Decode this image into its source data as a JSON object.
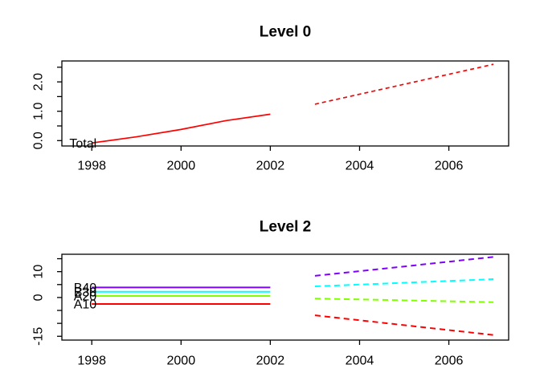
{
  "figure": {
    "background": "#ffffff",
    "axis_color": "#000000",
    "text_color": "#000000"
  },
  "chart_data": [
    {
      "type": "line",
      "title": "Level 0",
      "grid": false,
      "legend_position": "labels-at-line-start",
      "xlim": [
        1997.33,
        2007.34
      ],
      "ylim": [
        -0.183,
        2.713
      ],
      "xticks": {
        "values": [
          1998,
          2000,
          2002,
          2004,
          2006
        ],
        "labels": [
          "1998",
          "2000",
          "2002",
          "2004",
          "2006"
        ]
      },
      "yticks": {
        "values": [
          0,
          0.5,
          1,
          1.5,
          2,
          2.5
        ],
        "labels": [
          "0.0",
          "",
          "1.0",
          "",
          "2.0",
          ""
        ]
      },
      "series": [
        {
          "name": "Total",
          "label": "Total",
          "color": "#ff0000",
          "observed": {
            "x": [
              1998,
              1999,
              2000,
              2001,
              2002
            ],
            "values": [
              -0.08,
              0.13,
              0.38,
              0.68,
              0.9
            ]
          },
          "forecast": {
            "x": [
              2003,
              2004,
              2005,
              2006,
              2007
            ],
            "values": [
              1.24,
              1.58,
              1.92,
              2.26,
              2.6
            ]
          }
        }
      ]
    },
    {
      "type": "line",
      "title": "Level 2",
      "grid": false,
      "legend_position": "labels-at-line-start",
      "xlim": [
        1997.33,
        2007.34
      ],
      "ylim": [
        -16.47,
        16.72
      ],
      "xticks": {
        "values": [
          1998,
          2000,
          2002,
          2004,
          2006
        ],
        "labels": [
          "1998",
          "2000",
          "2002",
          "2004",
          "2006"
        ]
      },
      "yticks": {
        "values": [
          15,
          10,
          5,
          0,
          -5,
          -10,
          -15
        ],
        "labels": [
          "",
          "10",
          "",
          "0",
          "",
          "",
          "-15"
        ]
      },
      "series": [
        {
          "name": "A10",
          "label": "A10",
          "color": "#ff0000",
          "observed": {
            "x": [
              1998,
              1999,
              2000,
              2001,
              2002
            ],
            "values": [
              -2.5,
              -2.5,
              -2.5,
              -2.5,
              -2.5
            ]
          },
          "forecast": {
            "x": [
              2003,
              2004,
              2005,
              2006,
              2007
            ],
            "values": [
              -6.9,
              -8.8,
              -10.7,
              -12.6,
              -14.5
            ]
          }
        },
        {
          "name": "A20",
          "label": "A20",
          "color": "#80ff00",
          "observed": {
            "x": [
              1998,
              1999,
              2000,
              2001,
              2002
            ],
            "values": [
              0.6,
              0.6,
              0.6,
              0.6,
              0.6
            ]
          },
          "forecast": {
            "x": [
              2003,
              2004,
              2005,
              2006,
              2007
            ],
            "values": [
              -0.4,
              -0.75,
              -1.1,
              -1.45,
              -1.8
            ]
          }
        },
        {
          "name": "B30",
          "label": "B30",
          "color": "#00ffff",
          "observed": {
            "x": [
              1998,
              1999,
              2000,
              2001,
              2002
            ],
            "values": [
              2.2,
              2.2,
              2.2,
              2.2,
              2.2
            ]
          },
          "forecast": {
            "x": [
              2003,
              2004,
              2005,
              2006,
              2007
            ],
            "values": [
              4.3,
              5.0,
              5.7,
              6.4,
              7.1
            ]
          }
        },
        {
          "name": "B40",
          "label": "B40",
          "color": "#8000ff",
          "observed": {
            "x": [
              1998,
              1999,
              2000,
              2001,
              2002
            ],
            "values": [
              3.9,
              3.9,
              3.9,
              3.9,
              3.9
            ]
          },
          "forecast": {
            "x": [
              2003,
              2004,
              2005,
              2006,
              2007
            ],
            "values": [
              8.4,
              10.2,
              12.0,
              13.85,
              15.7
            ]
          }
        }
      ]
    }
  ]
}
